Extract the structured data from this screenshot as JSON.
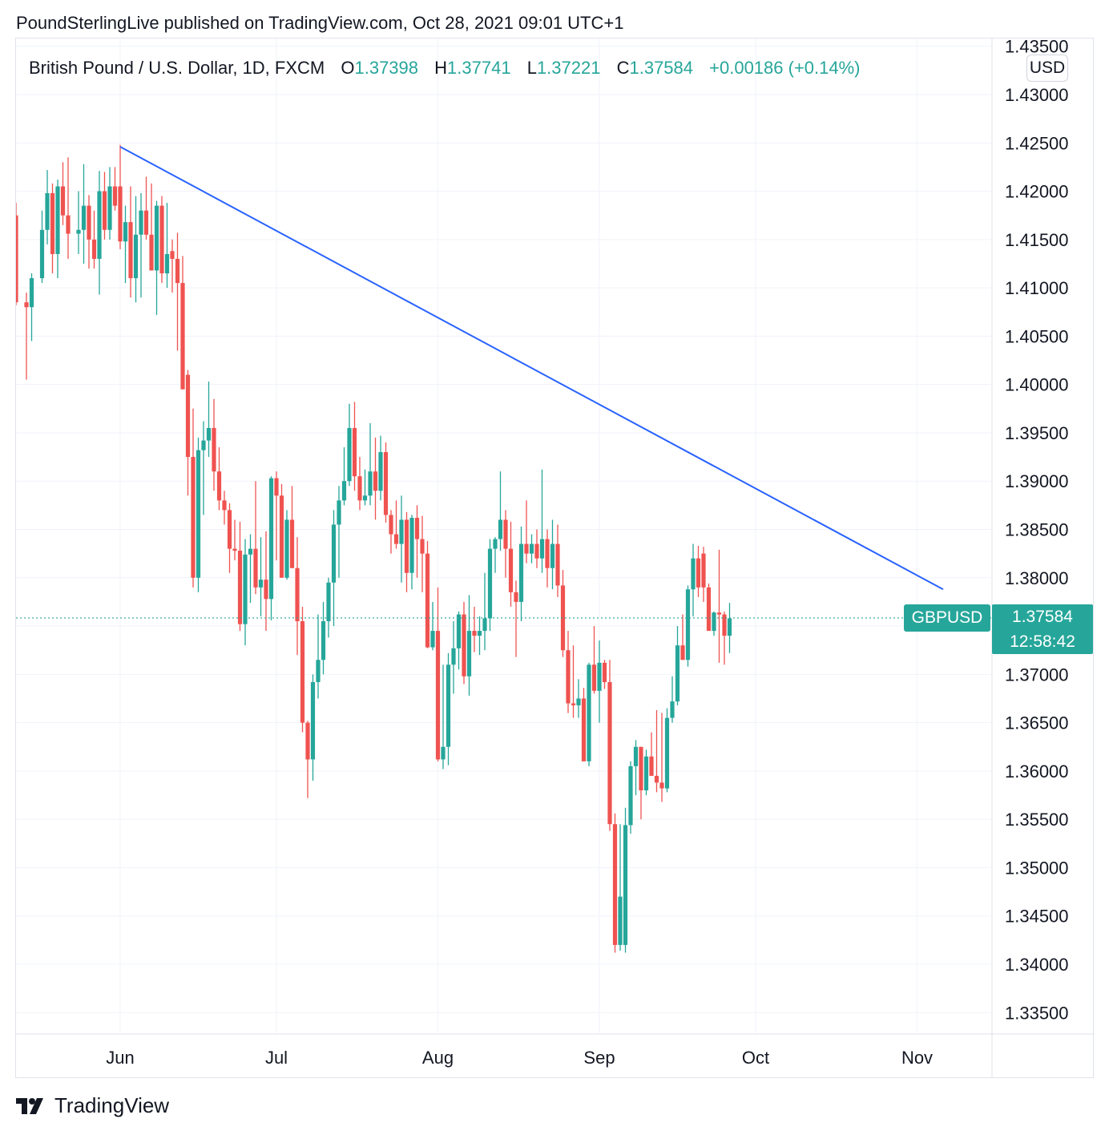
{
  "header": {
    "published": "PoundSterlingLive published on TradingView.com, Oct 28, 2021 09:01 UTC+1"
  },
  "legend": {
    "symbol": "British Pound / U.S. Dollar, 1D, FXCM",
    "open_label": "O",
    "open": "1.37398",
    "high_label": "H",
    "high": "1.37741",
    "low_label": "L",
    "low": "1.37221",
    "close_label": "C",
    "close": "1.37584",
    "change": "+0.00186 (+0.14%)"
  },
  "currency_badge": "USD",
  "last_price": {
    "symbol": "GBPUSD",
    "price": "1.37584",
    "countdown": "12:58:42"
  },
  "colors": {
    "up": "#26a69a",
    "down": "#ef5350",
    "trendline": "#2962ff",
    "grid": "#f0f3fa"
  },
  "brand": {
    "logo_text": "TradingView",
    "logo_icon": "tradingview-logo-icon"
  },
  "chart_data": {
    "type": "candlestick",
    "title": "British Pound / U.S. Dollar, 1D, FXCM",
    "ylabel": "USD",
    "ylim": [
      1.334,
      1.4355
    ],
    "y_ticks": [
      "1.43500",
      "1.43000",
      "1.42500",
      "1.42000",
      "1.41500",
      "1.41000",
      "1.40500",
      "1.40000",
      "1.39500",
      "1.39000",
      "1.38500",
      "1.38000",
      "1.37500",
      "1.37000",
      "1.36500",
      "1.36000",
      "1.35500",
      "1.35000",
      "1.34500",
      "1.34000",
      "1.33500"
    ],
    "x_ticks": [
      {
        "label": "Jun",
        "day": 0
      },
      {
        "label": "Jul",
        "day": 30
      },
      {
        "label": "Aug",
        "day": 61
      },
      {
        "label": "Sep",
        "day": 92
      },
      {
        "label": "Oct",
        "day": 122
      },
      {
        "label": "Nov",
        "day": 153
      }
    ],
    "day_range": [
      -20,
      170
    ],
    "grid": true,
    "last_price_line": 1.37584,
    "trendline": {
      "start": {
        "day": 0,
        "price": 1.4246
      },
      "end": {
        "day": 158,
        "price": 1.3788
      }
    },
    "candles": [
      {
        "d": -20,
        "o": 1.4175,
        "h": 1.4188,
        "l": 1.4082,
        "c": 1.4085
      },
      {
        "d": -18,
        "o": 1.4085,
        "h": 1.4095,
        "l": 1.4005,
        "c": 1.408
      },
      {
        "d": -17,
        "o": 1.408,
        "h": 1.4115,
        "l": 1.4045,
        "c": 1.411
      },
      {
        "d": -15,
        "o": 1.411,
        "h": 1.418,
        "l": 1.4105,
        "c": 1.416
      },
      {
        "d": -14,
        "o": 1.416,
        "h": 1.4222,
        "l": 1.4145,
        "c": 1.4198
      },
      {
        "d": -13,
        "o": 1.4198,
        "h": 1.4208,
        "l": 1.4115,
        "c": 1.4135
      },
      {
        "d": -12,
        "o": 1.4135,
        "h": 1.4212,
        "l": 1.411,
        "c": 1.4205
      },
      {
        "d": -11,
        "o": 1.4205,
        "h": 1.423,
        "l": 1.4165,
        "c": 1.4175
      },
      {
        "d": -10,
        "o": 1.4175,
        "h": 1.4235,
        "l": 1.413,
        "c": 1.4156
      },
      {
        "d": -8,
        "o": 1.4156,
        "h": 1.42,
        "l": 1.4135,
        "c": 1.416
      },
      {
        "d": -7,
        "o": 1.416,
        "h": 1.4228,
        "l": 1.4125,
        "c": 1.4185
      },
      {
        "d": -6,
        "o": 1.4185,
        "h": 1.4196,
        "l": 1.412,
        "c": 1.415
      },
      {
        "d": -5,
        "o": 1.415,
        "h": 1.418,
        "l": 1.412,
        "c": 1.413
      },
      {
        "d": -4,
        "o": 1.413,
        "h": 1.4221,
        "l": 1.4093,
        "c": 1.42
      },
      {
        "d": -3,
        "o": 1.42,
        "h": 1.422,
        "l": 1.415,
        "c": 1.416
      },
      {
        "d": -2,
        "o": 1.416,
        "h": 1.4225,
        "l": 1.415,
        "c": 1.4205
      },
      {
        "d": -1,
        "o": 1.4205,
        "h": 1.4225,
        "l": 1.418,
        "c": 1.4185
      },
      {
        "d": 0,
        "o": 1.4205,
        "h": 1.4248,
        "l": 1.414,
        "c": 1.4148
      },
      {
        "d": 1,
        "o": 1.4148,
        "h": 1.4185,
        "l": 1.4105,
        "c": 1.4168
      },
      {
        "d": 2,
        "o": 1.4168,
        "h": 1.4205,
        "l": 1.409,
        "c": 1.411
      },
      {
        "d": 3,
        "o": 1.411,
        "h": 1.4195,
        "l": 1.4085,
        "c": 1.4155
      },
      {
        "d": 4,
        "o": 1.4155,
        "h": 1.4198,
        "l": 1.409,
        "c": 1.418
      },
      {
        "d": 5,
        "o": 1.418,
        "h": 1.4215,
        "l": 1.415,
        "c": 1.4155
      },
      {
        "d": 6,
        "o": 1.4155,
        "h": 1.4208,
        "l": 1.4118,
        "c": 1.4118
      },
      {
        "d": 7,
        "o": 1.4118,
        "h": 1.419,
        "l": 1.4072,
        "c": 1.4185
      },
      {
        "d": 8,
        "o": 1.4185,
        "h": 1.4195,
        "l": 1.4105,
        "c": 1.4115
      },
      {
        "d": 9,
        "o": 1.4115,
        "h": 1.4188,
        "l": 1.41,
        "c": 1.4135
      },
      {
        "d": 10,
        "o": 1.4138,
        "h": 1.415,
        "l": 1.4095,
        "c": 1.413
      },
      {
        "d": 11,
        "o": 1.413,
        "h": 1.4157,
        "l": 1.4035,
        "c": 1.4105
      },
      {
        "d": 12,
        "o": 1.4105,
        "h": 1.4133,
        "l": 1.3995,
        "c": 1.3995
      },
      {
        "d": 13,
        "o": 1.401,
        "h": 1.4015,
        "l": 1.3885,
        "c": 1.3925
      },
      {
        "d": 14,
        "o": 1.3925,
        "h": 1.3975,
        "l": 1.379,
        "c": 1.38
      },
      {
        "d": 15,
        "o": 1.38,
        "h": 1.3945,
        "l": 1.3785,
        "c": 1.3932
      },
      {
        "d": 16,
        "o": 1.3932,
        "h": 1.3962,
        "l": 1.3865,
        "c": 1.3942
      },
      {
        "d": 17,
        "o": 1.3942,
        "h": 1.4003,
        "l": 1.3925,
        "c": 1.3955
      },
      {
        "d": 18,
        "o": 1.3955,
        "h": 1.3985,
        "l": 1.389,
        "c": 1.391
      },
      {
        "d": 19,
        "o": 1.391,
        "h": 1.3935,
        "l": 1.387,
        "c": 1.388
      },
      {
        "d": 20,
        "o": 1.388,
        "h": 1.389,
        "l": 1.3855,
        "c": 1.387
      },
      {
        "d": 21,
        "o": 1.387,
        "h": 1.3877,
        "l": 1.3805,
        "c": 1.383
      },
      {
        "d": 22,
        "o": 1.383,
        "h": 1.386,
        "l": 1.3818,
        "c": 1.3828
      },
      {
        "d": 23,
        "o": 1.3828,
        "h": 1.3858,
        "l": 1.3745,
        "c": 1.3752
      },
      {
        "d": 24,
        "o": 1.3752,
        "h": 1.384,
        "l": 1.373,
        "c": 1.3824
      },
      {
        "d": 25,
        "o": 1.3824,
        "h": 1.3845,
        "l": 1.3774,
        "c": 1.383
      },
      {
        "d": 26,
        "o": 1.383,
        "h": 1.39,
        "l": 1.3783,
        "c": 1.379
      },
      {
        "d": 27,
        "o": 1.379,
        "h": 1.3842,
        "l": 1.376,
        "c": 1.3798
      },
      {
        "d": 28,
        "o": 1.3798,
        "h": 1.3848,
        "l": 1.3745,
        "c": 1.3778
      },
      {
        "d": 29,
        "o": 1.3778,
        "h": 1.3905,
        "l": 1.3756,
        "c": 1.3903
      },
      {
        "d": 30,
        "o": 1.3903,
        "h": 1.391,
        "l": 1.3818,
        "c": 1.3885
      },
      {
        "d": 31,
        "o": 1.3885,
        "h": 1.3897,
        "l": 1.38,
        "c": 1.38
      },
      {
        "d": 32,
        "o": 1.38,
        "h": 1.387,
        "l": 1.3798,
        "c": 1.386
      },
      {
        "d": 33,
        "o": 1.386,
        "h": 1.3895,
        "l": 1.381,
        "c": 1.381
      },
      {
        "d": 34,
        "o": 1.381,
        "h": 1.3842,
        "l": 1.372,
        "c": 1.3755
      },
      {
        "d": 35,
        "o": 1.3755,
        "h": 1.377,
        "l": 1.364,
        "c": 1.365
      },
      {
        "d": 36,
        "o": 1.365,
        "h": 1.3652,
        "l": 1.3572,
        "c": 1.3612
      },
      {
        "d": 37,
        "o": 1.3612,
        "h": 1.37,
        "l": 1.359,
        "c": 1.3692
      },
      {
        "d": 38,
        "o": 1.3692,
        "h": 1.3762,
        "l": 1.3675,
        "c": 1.3715
      },
      {
        "d": 39,
        "o": 1.3715,
        "h": 1.3775,
        "l": 1.37,
        "c": 1.3755
      },
      {
        "d": 40,
        "o": 1.3755,
        "h": 1.38,
        "l": 1.3738,
        "c": 1.3795
      },
      {
        "d": 41,
        "o": 1.3795,
        "h": 1.387,
        "l": 1.375,
        "c": 1.3855
      },
      {
        "d": 42,
        "o": 1.3855,
        "h": 1.3895,
        "l": 1.38,
        "c": 1.388
      },
      {
        "d": 43,
        "o": 1.388,
        "h": 1.3935,
        "l": 1.3875,
        "c": 1.39
      },
      {
        "d": 44,
        "o": 1.39,
        "h": 1.398,
        "l": 1.3895,
        "c": 1.3955
      },
      {
        "d": 45,
        "o": 1.3955,
        "h": 1.3982,
        "l": 1.389,
        "c": 1.3905
      },
      {
        "d": 46,
        "o": 1.3905,
        "h": 1.3925,
        "l": 1.387,
        "c": 1.388
      },
      {
        "d": 47,
        "o": 1.388,
        "h": 1.3912,
        "l": 1.3875,
        "c": 1.3885
      },
      {
        "d": 48,
        "o": 1.3885,
        "h": 1.396,
        "l": 1.3875,
        "c": 1.391
      },
      {
        "d": 49,
        "o": 1.391,
        "h": 1.3945,
        "l": 1.386,
        "c": 1.389
      },
      {
        "d": 50,
        "o": 1.389,
        "h": 1.3947,
        "l": 1.388,
        "c": 1.393
      },
      {
        "d": 51,
        "o": 1.393,
        "h": 1.394,
        "l": 1.3857,
        "c": 1.3865
      },
      {
        "d": 52,
        "o": 1.3865,
        "h": 1.387,
        "l": 1.3825,
        "c": 1.3845
      },
      {
        "d": 53,
        "o": 1.3845,
        "h": 1.388,
        "l": 1.383,
        "c": 1.3835
      },
      {
        "d": 54,
        "o": 1.3835,
        "h": 1.3885,
        "l": 1.3795,
        "c": 1.386
      },
      {
        "d": 55,
        "o": 1.386,
        "h": 1.3868,
        "l": 1.3785,
        "c": 1.3805
      },
      {
        "d": 56,
        "o": 1.3805,
        "h": 1.3865,
        "l": 1.3788,
        "c": 1.3862
      },
      {
        "d": 57,
        "o": 1.3862,
        "h": 1.3875,
        "l": 1.38,
        "c": 1.384
      },
      {
        "d": 58,
        "o": 1.384,
        "h": 1.3864,
        "l": 1.3785,
        "c": 1.3825
      },
      {
        "d": 59,
        "o": 1.3825,
        "h": 1.3838,
        "l": 1.3727,
        "c": 1.3728
      },
      {
        "d": 60,
        "o": 1.3728,
        "h": 1.3775,
        "l": 1.3725,
        "c": 1.3745
      },
      {
        "d": 61,
        "o": 1.3745,
        "h": 1.379,
        "l": 1.361,
        "c": 1.3612
      },
      {
        "d": 62,
        "o": 1.3612,
        "h": 1.371,
        "l": 1.3602,
        "c": 1.3625
      },
      {
        "d": 63,
        "o": 1.3625,
        "h": 1.3722,
        "l": 1.3606,
        "c": 1.371
      },
      {
        "d": 64,
        "o": 1.371,
        "h": 1.3755,
        "l": 1.368,
        "c": 1.3727
      },
      {
        "d": 65,
        "o": 1.3727,
        "h": 1.3765,
        "l": 1.3705,
        "c": 1.3762
      },
      {
        "d": 66,
        "o": 1.3762,
        "h": 1.3775,
        "l": 1.369,
        "c": 1.3698
      },
      {
        "d": 67,
        "o": 1.3698,
        "h": 1.3782,
        "l": 1.3678,
        "c": 1.3745
      },
      {
        "d": 68,
        "o": 1.3745,
        "h": 1.377,
        "l": 1.3723,
        "c": 1.374
      },
      {
        "d": 69,
        "o": 1.374,
        "h": 1.376,
        "l": 1.372,
        "c": 1.3745
      },
      {
        "d": 70,
        "o": 1.3745,
        "h": 1.3805,
        "l": 1.3725,
        "c": 1.3758
      },
      {
        "d": 71,
        "o": 1.3758,
        "h": 1.384,
        "l": 1.3745,
        "c": 1.383
      },
      {
        "d": 72,
        "o": 1.383,
        "h": 1.3842,
        "l": 1.3805,
        "c": 1.384
      },
      {
        "d": 73,
        "o": 1.384,
        "h": 1.391,
        "l": 1.3828,
        "c": 1.386
      },
      {
        "d": 74,
        "o": 1.386,
        "h": 1.387,
        "l": 1.38,
        "c": 1.383
      },
      {
        "d": 75,
        "o": 1.383,
        "h": 1.3858,
        "l": 1.377,
        "c": 1.3785
      },
      {
        "d": 76,
        "o": 1.3785,
        "h": 1.3797,
        "l": 1.3718,
        "c": 1.3775
      },
      {
        "d": 77,
        "o": 1.3775,
        "h": 1.3853,
        "l": 1.3755,
        "c": 1.3835
      },
      {
        "d": 78,
        "o": 1.3835,
        "h": 1.388,
        "l": 1.3815,
        "c": 1.3825
      },
      {
        "d": 79,
        "o": 1.3825,
        "h": 1.3845,
        "l": 1.3815,
        "c": 1.3835
      },
      {
        "d": 80,
        "o": 1.3835,
        "h": 1.385,
        "l": 1.381,
        "c": 1.382
      },
      {
        "d": 81,
        "o": 1.382,
        "h": 1.3912,
        "l": 1.3805,
        "c": 1.384
      },
      {
        "d": 82,
        "o": 1.384,
        "h": 1.385,
        "l": 1.379,
        "c": 1.381
      },
      {
        "d": 83,
        "o": 1.381,
        "h": 1.386,
        "l": 1.3788,
        "c": 1.3835
      },
      {
        "d": 84,
        "o": 1.3835,
        "h": 1.3855,
        "l": 1.378,
        "c": 1.3792
      },
      {
        "d": 85,
        "o": 1.3792,
        "h": 1.3808,
        "l": 1.3718,
        "c": 1.3725
      },
      {
        "d": 86,
        "o": 1.3725,
        "h": 1.3745,
        "l": 1.366,
        "c": 1.367
      },
      {
        "d": 87,
        "o": 1.367,
        "h": 1.373,
        "l": 1.3655,
        "c": 1.3668
      },
      {
        "d": 88,
        "o": 1.3668,
        "h": 1.3695,
        "l": 1.3655,
        "c": 1.3675
      },
      {
        "d": 89,
        "o": 1.3675,
        "h": 1.3686,
        "l": 1.361,
        "c": 1.361
      },
      {
        "d": 90,
        "o": 1.361,
        "h": 1.3712,
        "l": 1.3605,
        "c": 1.371
      },
      {
        "d": 91,
        "o": 1.371,
        "h": 1.375,
        "l": 1.368,
        "c": 1.3683
      },
      {
        "d": 92,
        "o": 1.3683,
        "h": 1.3735,
        "l": 1.365,
        "c": 1.3712
      },
      {
        "d": 93,
        "o": 1.3712,
        "h": 1.3715,
        "l": 1.3685,
        "c": 1.3692
      },
      {
        "d": 94,
        "o": 1.3692,
        "h": 1.3715,
        "l": 1.3538,
        "c": 1.3545
      },
      {
        "d": 95,
        "o": 1.3545,
        "h": 1.3556,
        "l": 1.3412,
        "c": 1.342
      },
      {
        "d": 96,
        "o": 1.342,
        "h": 1.3545,
        "l": 1.3414,
        "c": 1.347
      },
      {
        "d": 97,
        "o": 1.342,
        "h": 1.3562,
        "l": 1.3412,
        "c": 1.3544
      },
      {
        "d": 98,
        "o": 1.3544,
        "h": 1.361,
        "l": 1.3535,
        "c": 1.3605
      },
      {
        "d": 99,
        "o": 1.3605,
        "h": 1.3632,
        "l": 1.3575,
        "c": 1.3625
      },
      {
        "d": 100,
        "o": 1.3625,
        "h": 1.3625,
        "l": 1.355,
        "c": 1.358
      },
      {
        "d": 101,
        "o": 1.358,
        "h": 1.3622,
        "l": 1.3575,
        "c": 1.3615
      },
      {
        "d": 102,
        "o": 1.3615,
        "h": 1.364,
        "l": 1.3595,
        "c": 1.3595
      },
      {
        "d": 103,
        "o": 1.3595,
        "h": 1.3663,
        "l": 1.3578,
        "c": 1.3588
      },
      {
        "d": 104,
        "o": 1.3588,
        "h": 1.366,
        "l": 1.3568,
        "c": 1.3582
      },
      {
        "d": 105,
        "o": 1.3582,
        "h": 1.3665,
        "l": 1.3578,
        "c": 1.3655
      },
      {
        "d": 106,
        "o": 1.3655,
        "h": 1.3698,
        "l": 1.365,
        "c": 1.3672
      },
      {
        "d": 107,
        "o": 1.3672,
        "h": 1.375,
        "l": 1.3668,
        "c": 1.373
      },
      {
        "d": 108,
        "o": 1.373,
        "h": 1.3762,
        "l": 1.3715,
        "c": 1.3715
      },
      {
        "d": 109,
        "o": 1.3715,
        "h": 1.3792,
        "l": 1.3708,
        "c": 1.3788
      },
      {
        "d": 110,
        "o": 1.3788,
        "h": 1.3835,
        "l": 1.376,
        "c": 1.382
      },
      {
        "d": 111,
        "o": 1.382,
        "h": 1.3833,
        "l": 1.378,
        "c": 1.379
      },
      {
        "d": 112,
        "o": 1.3825,
        "h": 1.3832,
        "l": 1.3775,
        "c": 1.379
      },
      {
        "d": 113,
        "o": 1.379,
        "h": 1.3794,
        "l": 1.3745,
        "c": 1.3745
      },
      {
        "d": 114,
        "o": 1.3745,
        "h": 1.3765,
        "l": 1.374,
        "c": 1.3764
      },
      {
        "d": 115,
        "o": 1.3764,
        "h": 1.3829,
        "l": 1.3712,
        "c": 1.3762
      },
      {
        "d": 116,
        "o": 1.3762,
        "h": 1.3765,
        "l": 1.371,
        "c": 1.374
      },
      {
        "d": 117,
        "o": 1.374,
        "h": 1.3774,
        "l": 1.3722,
        "c": 1.3758
      }
    ]
  }
}
